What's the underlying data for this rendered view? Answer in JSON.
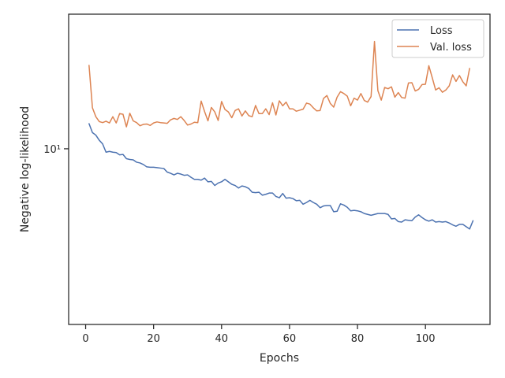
{
  "chart_data": {
    "type": "line",
    "title": "",
    "xlabel": "Epochs",
    "ylabel": "Negative log-likelihood",
    "xlim": [
      -5,
      119
    ],
    "ylim": [
      6.27,
      14.3
    ],
    "yscale": "log",
    "xticks": [
      0,
      20,
      40,
      60,
      80,
      100
    ],
    "xtick_labels": [
      "0",
      "20",
      "40",
      "60",
      "80",
      "100"
    ],
    "yticks": [
      10
    ],
    "ytick_labels": [
      "10¹"
    ],
    "grid": false,
    "legend_position": "upper right",
    "series": [
      {
        "name": "Loss",
        "color": "#4c72b0",
        "x_start": 1,
        "y": [
          10.69,
          10.44,
          10.37,
          10.23,
          10.13,
          9.91,
          9.93,
          9.91,
          9.9,
          9.84,
          9.85,
          9.74,
          9.72,
          9.71,
          9.65,
          9.63,
          9.59,
          9.53,
          9.52,
          9.52,
          9.51,
          9.5,
          9.49,
          9.4,
          9.37,
          9.33,
          9.37,
          9.35,
          9.32,
          9.33,
          9.27,
          9.22,
          9.22,
          9.2,
          9.25,
          9.16,
          9.17,
          9.07,
          9.13,
          9.16,
          9.22,
          9.16,
          9.1,
          9.07,
          9.01,
          9.06,
          9.04,
          9.0,
          8.91,
          8.9,
          8.91,
          8.84,
          8.86,
          8.89,
          8.89,
          8.81,
          8.78,
          8.88,
          8.77,
          8.78,
          8.76,
          8.71,
          8.72,
          8.63,
          8.67,
          8.72,
          8.67,
          8.63,
          8.55,
          8.59,
          8.6,
          8.6,
          8.46,
          8.47,
          8.64,
          8.61,
          8.56,
          8.48,
          8.49,
          8.48,
          8.46,
          8.42,
          8.4,
          8.38,
          8.4,
          8.42,
          8.42,
          8.42,
          8.4,
          8.3,
          8.31,
          8.24,
          8.23,
          8.28,
          8.27,
          8.26,
          8.34,
          8.39,
          8.33,
          8.28,
          8.25,
          8.28,
          8.23,
          8.24,
          8.23,
          8.24,
          8.21,
          8.17,
          8.14,
          8.18,
          8.18,
          8.13,
          8.08,
          8.26
        ]
      },
      {
        "name": "Val. loss",
        "color": "#dd8452",
        "x_start": 1,
        "y": [
          12.48,
          11.15,
          10.89,
          10.75,
          10.72,
          10.76,
          10.71,
          10.89,
          10.71,
          10.98,
          10.96,
          10.6,
          10.99,
          10.77,
          10.72,
          10.63,
          10.67,
          10.68,
          10.64,
          10.71,
          10.74,
          10.72,
          10.71,
          10.7,
          10.8,
          10.84,
          10.81,
          10.89,
          10.78,
          10.65,
          10.68,
          10.73,
          10.72,
          11.35,
          11.04,
          10.77,
          11.16,
          11.03,
          10.78,
          11.34,
          11.1,
          11.03,
          10.86,
          11.07,
          11.12,
          10.91,
          11.06,
          10.92,
          10.89,
          11.22,
          10.98,
          10.98,
          11.12,
          10.95,
          11.3,
          10.94,
          11.36,
          11.21,
          11.32,
          11.12,
          11.12,
          11.05,
          11.08,
          11.11,
          11.29,
          11.26,
          11.15,
          11.06,
          11.07,
          11.43,
          11.52,
          11.28,
          11.17,
          11.47,
          11.64,
          11.58,
          11.5,
          11.21,
          11.44,
          11.38,
          11.58,
          11.37,
          11.32,
          11.49,
          13.3,
          11.67,
          11.38,
          11.77,
          11.73,
          11.79,
          11.47,
          11.61,
          11.46,
          11.44,
          11.91,
          11.92,
          11.66,
          11.71,
          11.86,
          11.87,
          12.47,
          12.08,
          11.69,
          11.76,
          11.62,
          11.69,
          11.82,
          12.17,
          11.96,
          12.15,
          11.95,
          11.82,
          12.38
        ]
      }
    ]
  }
}
